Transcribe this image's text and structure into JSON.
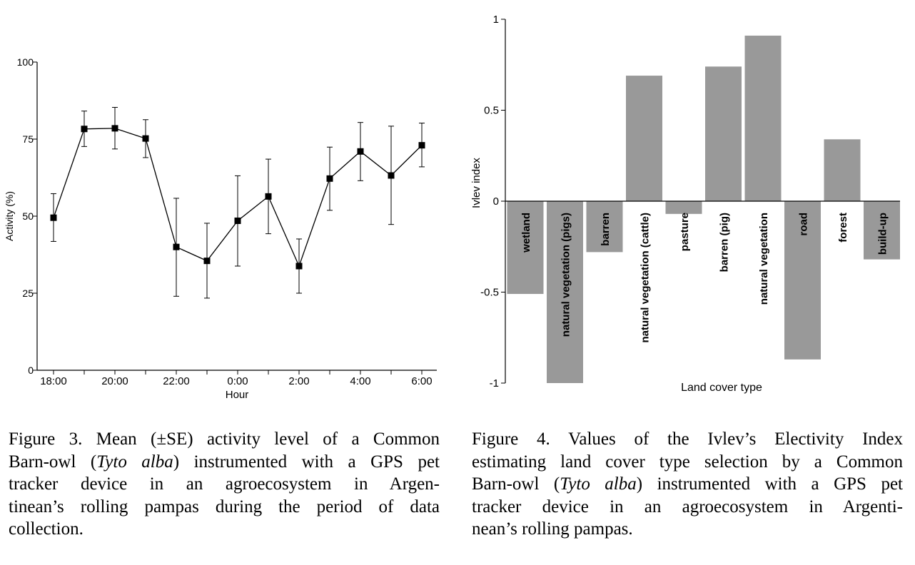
{
  "chart_data": [
    {
      "type": "line",
      "title": "",
      "xlabel": "Hour",
      "ylabel": "Activity (%)",
      "ylim": [
        0,
        100
      ],
      "yticks": [
        "0",
        "25",
        "50",
        "75",
        "100"
      ],
      "xticks": [
        "18:00",
        "20:00",
        "22:00",
        "0:00",
        "2:00",
        "4:00",
        "6:00"
      ],
      "x": [
        0,
        1,
        2,
        3,
        4,
        5,
        6,
        7,
        8,
        9,
        10,
        11,
        12
      ],
      "series": [
        {
          "name": "Mean activity",
          "values": [
            49.5,
            78.3,
            78.5,
            75.2,
            40.0,
            35.5,
            48.5,
            56.4,
            33.8,
            62.2,
            71.0,
            63.2,
            73.0
          ],
          "error_upper": [
            57.3,
            84.1,
            85.3,
            81.3,
            55.8,
            47.7,
            63.1,
            68.5,
            42.6,
            72.4,
            80.4,
            79.2,
            80.2
          ],
          "error_lower": [
            41.8,
            72.6,
            71.8,
            69.0,
            24.0,
            23.4,
            33.8,
            44.3,
            25.0,
            51.9,
            61.5,
            47.3,
            66.0
          ]
        }
      ]
    },
    {
      "type": "bar",
      "title": "",
      "xlabel": "Land cover type",
      "ylabel": "Ivlev index",
      "ylim": [
        -1,
        1
      ],
      "yticks": [
        "-1",
        "-0.5",
        "0",
        "0.5",
        "1"
      ],
      "categories": [
        "wetland",
        "natural vegetation (pigs)",
        "barren",
        "natural vegetation (cattle)",
        "pasture",
        "barren (pig)",
        "natural vegetation",
        "road",
        "forest",
        "build-up"
      ],
      "values": [
        -0.51,
        -1.0,
        -0.28,
        0.69,
        -0.07,
        0.74,
        0.91,
        -0.87,
        0.34,
        -0.32
      ],
      "bar_color": "#999999"
    }
  ],
  "captions": {
    "fig3": {
      "lines": [
        {
          "parts": [
            {
              "t": "Figure 3. Mean (±SE) activity level of a Common"
            }
          ]
        },
        {
          "parts": [
            {
              "t": "Barn-owl ("
            },
            {
              "t": "Tyto alba",
              "i": true
            },
            {
              "t": ") instrumented with a GPS pet"
            }
          ]
        },
        {
          "parts": [
            {
              "t": "tracker device in an agroecosystem in Argen-"
            }
          ]
        },
        {
          "parts": [
            {
              "t": "tinean’s rolling pampas during the period of data"
            }
          ]
        },
        {
          "parts": [
            {
              "t": "collection."
            }
          ],
          "last": true
        }
      ]
    },
    "fig4": {
      "lines": [
        {
          "parts": [
            {
              "t": "Figure 4. Values of the Ivlev’s Electivity Index"
            }
          ]
        },
        {
          "parts": [
            {
              "t": "estimating land cover type selection by a Common"
            }
          ]
        },
        {
          "parts": [
            {
              "t": "Barn-owl ("
            },
            {
              "t": "Tyto alba",
              "i": true
            },
            {
              "t": ") instrumented with a GPS pet"
            }
          ]
        },
        {
          "parts": [
            {
              "t": "tracker device in an agroecosystem in Argenti-"
            }
          ]
        },
        {
          "parts": [
            {
              "t": "nean’s rolling pampas."
            }
          ],
          "last": true
        }
      ]
    }
  }
}
